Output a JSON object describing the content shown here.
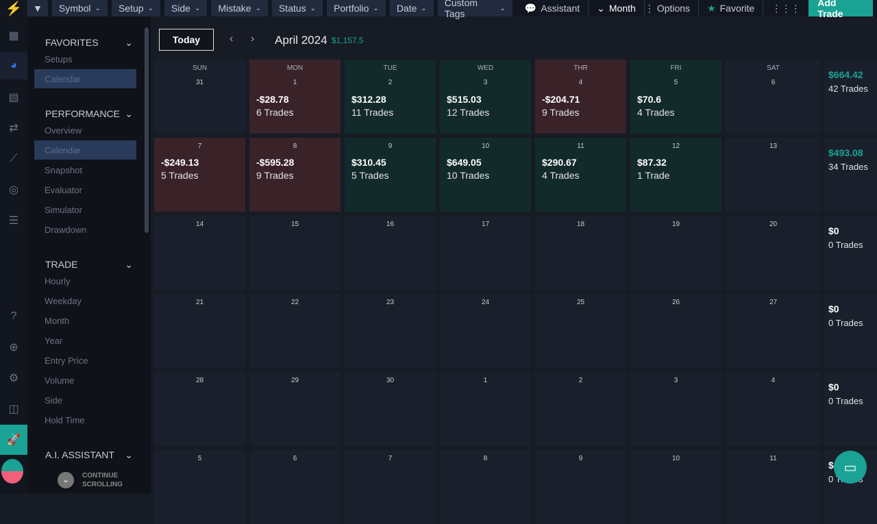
{
  "topbar": {
    "filters": [
      "Symbol",
      "Setup",
      "Side",
      "Mistake",
      "Status",
      "Portfolio",
      "Date",
      "Custom Tags"
    ],
    "assistant": "Assistant",
    "month": "Month",
    "options": "Options",
    "favorite": "Favorite",
    "add_trade": "Add Trade"
  },
  "sidebar": {
    "sections": [
      {
        "title": "FAVORITES",
        "items": [
          "Setups",
          "Calendar"
        ],
        "selected": 1
      },
      {
        "title": "PERFORMANCE",
        "items": [
          "Overview",
          "Calendar",
          "Snapshot",
          "Evaluator",
          "Simulator",
          "Drawdown"
        ],
        "selected": 1
      },
      {
        "title": "TRADE",
        "items": [
          "Hourly",
          "Weekday",
          "Month",
          "Year",
          "Entry Price",
          "Volume",
          "Side",
          "Hold Time"
        ],
        "selected": -1
      },
      {
        "title": "A.I. ASSISTANT",
        "items": [],
        "selected": -1
      }
    ],
    "continue": "CONTINUE SCROLLING"
  },
  "calendar": {
    "today": "Today",
    "month": "April 2024",
    "month_total": "$1,157.5",
    "days_of_week": [
      "SUN",
      "MON",
      "TUE",
      "WED",
      "THR",
      "FRI",
      "SAT"
    ],
    "weeks": [
      {
        "days": [
          {
            "d": "31"
          },
          {
            "d": "1",
            "pnl": "-$28.78",
            "trades": "6 Trades",
            "s": "loss"
          },
          {
            "d": "2",
            "pnl": "$312.28",
            "trades": "11 Trades",
            "s": "win"
          },
          {
            "d": "3",
            "pnl": "$515.03",
            "trades": "12 Trades",
            "s": "win"
          },
          {
            "d": "4",
            "pnl": "-$204.71",
            "trades": "9 Trades",
            "s": "loss"
          },
          {
            "d": "5",
            "pnl": "$70.6",
            "trades": "4 Trades",
            "s": "win"
          },
          {
            "d": "6"
          }
        ],
        "total": "$664.42",
        "trades": "42 Trades"
      },
      {
        "days": [
          {
            "d": "7",
            "pnl": "-$249.13",
            "trades": "5 Trades",
            "s": "loss"
          },
          {
            "d": "8",
            "pnl": "-$595.28",
            "trades": "9 Trades",
            "s": "loss"
          },
          {
            "d": "9",
            "pnl": "$310.45",
            "trades": "5 Trades",
            "s": "win"
          },
          {
            "d": "10",
            "pnl": "$649.05",
            "trades": "10 Trades",
            "s": "win"
          },
          {
            "d": "11",
            "pnl": "$290.67",
            "trades": "4 Trades",
            "s": "win"
          },
          {
            "d": "12",
            "pnl": "$87.32",
            "trades": "1 Trade",
            "s": "win"
          },
          {
            "d": "13"
          }
        ],
        "total": "$493.08",
        "trades": "34 Trades"
      },
      {
        "days": [
          {
            "d": "14"
          },
          {
            "d": "15"
          },
          {
            "d": "16"
          },
          {
            "d": "17"
          },
          {
            "d": "18"
          },
          {
            "d": "19"
          },
          {
            "d": "20"
          }
        ],
        "total": "$0",
        "trades": "0 Trades"
      },
      {
        "days": [
          {
            "d": "21"
          },
          {
            "d": "22"
          },
          {
            "d": "23"
          },
          {
            "d": "24"
          },
          {
            "d": "25"
          },
          {
            "d": "26"
          },
          {
            "d": "27"
          }
        ],
        "total": "$0",
        "trades": "0 Trades"
      },
      {
        "days": [
          {
            "d": "28"
          },
          {
            "d": "29"
          },
          {
            "d": "30"
          },
          {
            "d": "1"
          },
          {
            "d": "2"
          },
          {
            "d": "3"
          },
          {
            "d": "4"
          }
        ],
        "total": "$0",
        "trades": "0 Trades"
      },
      {
        "days": [
          {
            "d": "5"
          },
          {
            "d": "6"
          },
          {
            "d": "7"
          },
          {
            "d": "8"
          },
          {
            "d": "9"
          },
          {
            "d": "10"
          },
          {
            "d": "11"
          }
        ],
        "total": "$0",
        "trades": "0 Trades"
      }
    ]
  },
  "colors": {
    "accent": "#1aa394",
    "win": "#132a2b",
    "loss": "#3a2229"
  }
}
